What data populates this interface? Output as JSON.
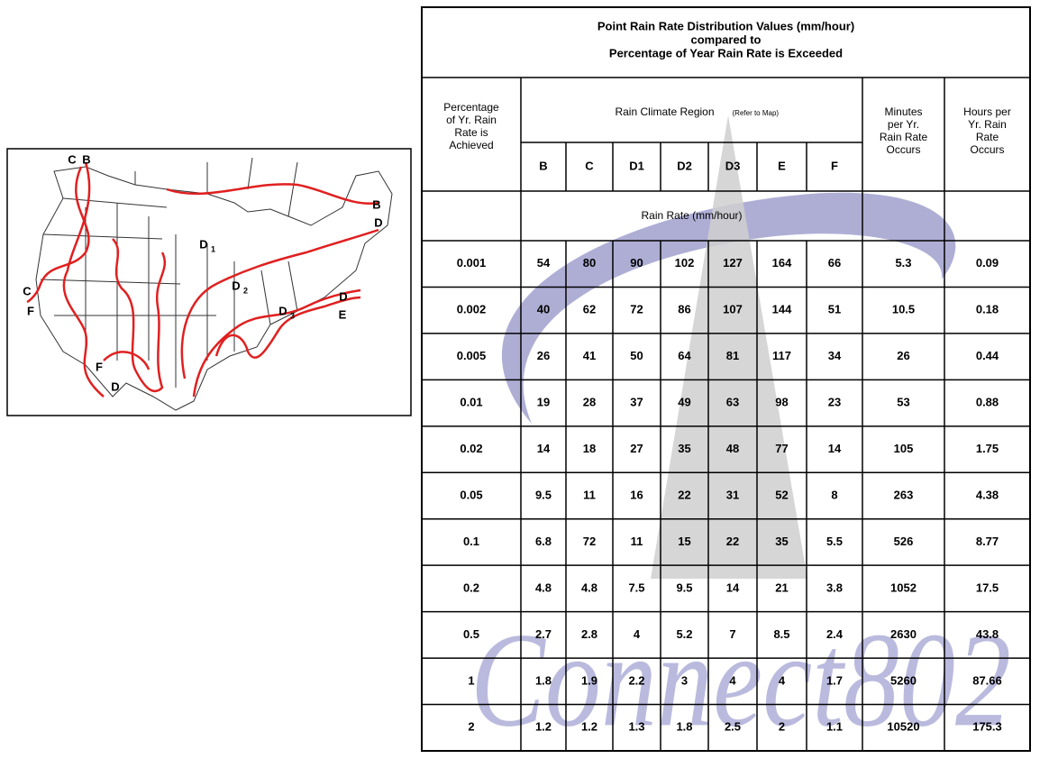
{
  "title": [
    "Point Rain Rate Distribution Values (mm/hour)",
    "compared to",
    "Percentage of Year Rain Rate is Exceeded"
  ],
  "table": {
    "header": {
      "percentage": [
        "Percentage",
        "of Yr. Rain",
        "Rate is",
        "Achieved"
      ],
      "region": "Rain Climate Region",
      "region_note": "(Refer to Map)",
      "regions": [
        "B",
        "C",
        "D1",
        "D2",
        "D3",
        "E",
        "F"
      ],
      "minutes": [
        "Minutes",
        "per Yr.",
        "Rain Rate",
        "Occurs"
      ],
      "hours": [
        "Hours per",
        "Yr. Rain",
        "Rate",
        "Occurs"
      ],
      "rain_rate_unit": "Rain Rate (mm/hour)"
    },
    "rows": [
      [
        "0.001",
        "54",
        "80",
        "90",
        "102",
        "127",
        "164",
        "66",
        "5.3",
        "0.09"
      ],
      [
        "0.002",
        "40",
        "62",
        "72",
        "86",
        "107",
        "144",
        "51",
        "10.5",
        "0.18"
      ],
      [
        "0.005",
        "26",
        "41",
        "50",
        "64",
        "81",
        "117",
        "34",
        "26",
        "0.44"
      ],
      [
        "0.01",
        "19",
        "28",
        "37",
        "49",
        "63",
        "98",
        "23",
        "53",
        "0.88"
      ],
      [
        "0.02",
        "14",
        "18",
        "27",
        "35",
        "48",
        "77",
        "14",
        "105",
        "1.75"
      ],
      [
        "0.05",
        "9.5",
        "11",
        "16",
        "22",
        "31",
        "52",
        "8",
        "263",
        "4.38"
      ],
      [
        "0.1",
        "6.8",
        "72",
        "11",
        "15",
        "22",
        "35",
        "5.5",
        "526",
        "8.77"
      ],
      [
        "0.2",
        "4.8",
        "4.8",
        "7.5",
        "9.5",
        "14",
        "21",
        "3.8",
        "1052",
        "17.5"
      ],
      [
        "0.5",
        "2.7",
        "2.8",
        "4",
        "5.2",
        "7",
        "8.5",
        "2.4",
        "2630",
        "43.8"
      ],
      [
        "1",
        "1.8",
        "1.9",
        "2.2",
        "3",
        "4",
        "4",
        "1.7",
        "5260",
        "87.66"
      ],
      [
        "2",
        "1.2",
        "1.2",
        "1.3",
        "1.8",
        "2.5",
        "2",
        "1.1",
        "10520",
        "175.3"
      ]
    ]
  },
  "map": {
    "labels": [
      {
        "letter": "C"
      },
      {
        "letter": "B"
      },
      {
        "letter": "B"
      },
      {
        "letter": "D"
      },
      {
        "letter": "D",
        "sub": "1"
      },
      {
        "letter": "D",
        "sub": "2"
      },
      {
        "letter": "D",
        "sub": "3"
      },
      {
        "letter": "D"
      },
      {
        "letter": "E"
      },
      {
        "letter": "C"
      },
      {
        "letter": "F"
      },
      {
        "letter": "F"
      },
      {
        "letter": "D"
      }
    ]
  },
  "watermark": "Connect802"
}
